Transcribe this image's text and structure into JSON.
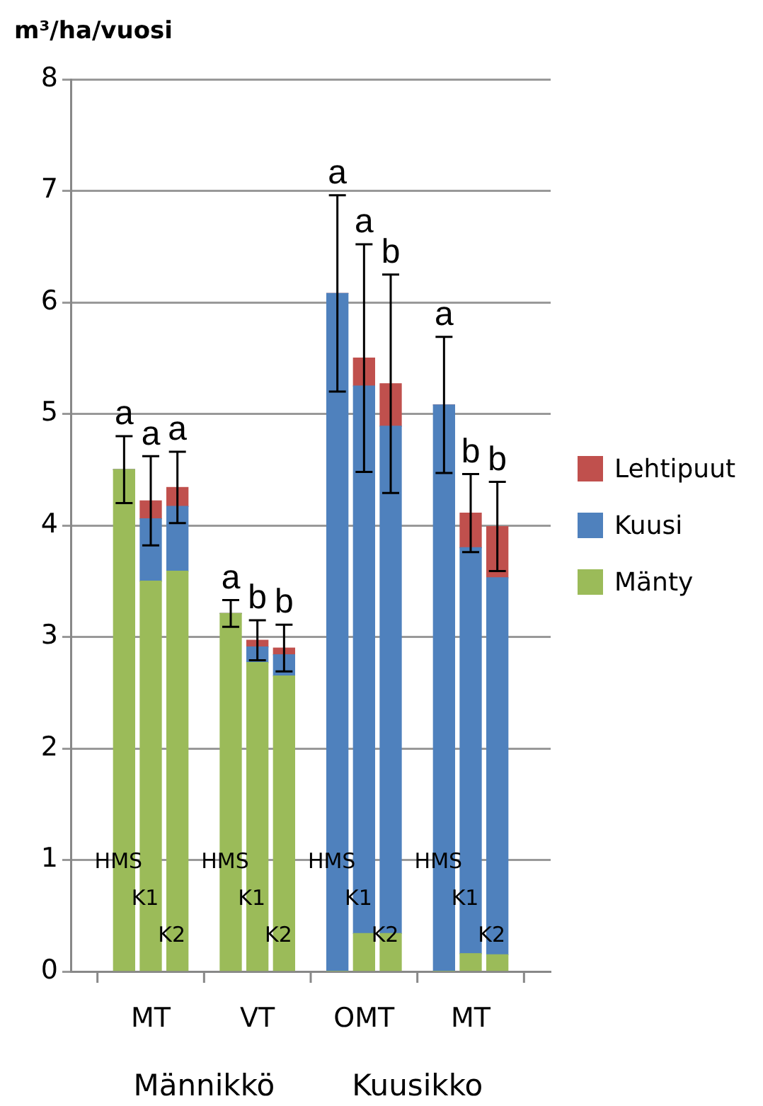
{
  "chart_data": {
    "type": "bar",
    "stacked": true,
    "ylabel": "m³/ha/vuosi",
    "categories": [
      "HMS",
      "K1",
      "K2",
      "HMS",
      "K1",
      "K2",
      "HMS",
      "K1",
      "K2",
      "HMS",
      "K1",
      "K2"
    ],
    "series": [
      {
        "name": "Mänty",
        "color": "#9bbb59",
        "values": [
          4.5,
          3.5,
          3.59,
          3.21,
          2.77,
          2.65,
          0,
          0.34,
          0.34,
          0,
          0.16,
          0.15
        ],
        "errors": [
          0.3,
          null,
          null,
          0.12,
          null,
          null,
          null,
          null,
          null,
          null,
          null,
          null
        ]
      },
      {
        "name": "Kuusi",
        "color": "#4f81bd",
        "values": [
          0,
          0.56,
          0.58,
          0,
          0.14,
          0.19,
          6.08,
          4.91,
          4.55,
          5.08,
          3.64,
          3.38
        ],
        "errors": [
          null,
          null,
          null,
          null,
          null,
          null,
          0.88,
          null,
          null,
          0.61,
          null,
          null
        ]
      },
      {
        "name": "Lehtipuut",
        "color": "#c0504d",
        "values": [
          0,
          0.16,
          0.17,
          0,
          0.06,
          0.06,
          0,
          0.25,
          0.38,
          0,
          0.31,
          0.46
        ],
        "errors": [
          null,
          0.4,
          0.32,
          null,
          0.18,
          0.21,
          null,
          1.02,
          0.98,
          null,
          0.35,
          0.4
        ]
      }
    ],
    "annotations": [
      "a",
      "a",
      "a",
      "a",
      "b",
      "b",
      "a",
      "a",
      "b",
      "a",
      "b",
      "b",
      "MT",
      "VT",
      "OMT",
      "MT",
      "Männikkö",
      "Kuusikko"
    ],
    "ylim": [
      0,
      8
    ],
    "yticks": [
      0,
      1,
      2,
      3,
      4,
      5,
      6,
      7,
      8
    ],
    "grid": "y",
    "legend": "right"
  }
}
